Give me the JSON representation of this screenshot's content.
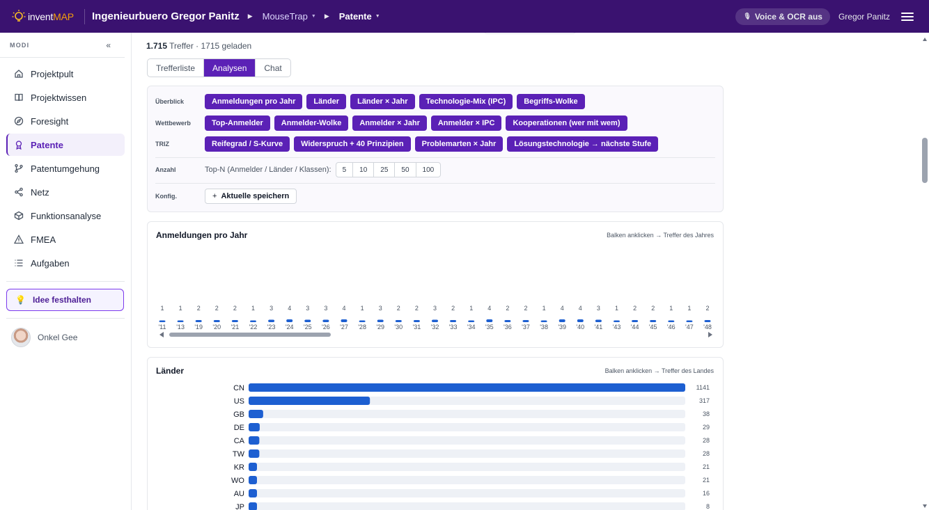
{
  "topbar": {
    "logo_part1": "invent",
    "logo_part2": "MAP",
    "org_name": "Ingenieurbuero Gregor Panitz",
    "crumbs": [
      {
        "label": "MouseTrap"
      },
      {
        "label": "Patente"
      }
    ],
    "voice_label": "Voice & OCR aus",
    "user_name": "Gregor Panitz"
  },
  "sidebar": {
    "section_label": "MODI",
    "collapse_label": "«",
    "items": [
      {
        "label": "Projektpult",
        "icon": "home-icon"
      },
      {
        "label": "Projektwissen",
        "icon": "book-icon"
      },
      {
        "label": "Foresight",
        "icon": "compass-icon"
      },
      {
        "label": "Patente",
        "icon": "award-icon",
        "active": true
      },
      {
        "label": "Patentumgehung",
        "icon": "git-branch-icon"
      },
      {
        "label": "Netz",
        "icon": "share-icon"
      },
      {
        "label": "Funktionsanalyse",
        "icon": "cube-icon"
      },
      {
        "label": "FMEA",
        "icon": "warning-icon"
      },
      {
        "label": "Aufgaben",
        "icon": "list-icon"
      }
    ],
    "idea_button": "Idee festhalten",
    "user": "Onkel Gee"
  },
  "main": {
    "hits_count": "1.715",
    "hits_text": "Treffer · 1715 geladen",
    "tabs": [
      "Trefferliste",
      "Analysen",
      "Chat"
    ],
    "active_tab": "Analysen",
    "panel": {
      "rows": [
        {
          "label": "Überblick",
          "chips": [
            "Anmeldungen pro Jahr",
            "Länder",
            "Länder × Jahr",
            "Technologie-Mix (IPC)",
            "Begriffs-Wolke"
          ]
        },
        {
          "label": "Wettbewerb",
          "chips": [
            "Top-Anmelder",
            "Anmelder-Wolke",
            "Anmelder × Jahr",
            "Anmelder × IPC",
            "Kooperationen (wer mit wem)"
          ]
        },
        {
          "label": "TRIZ",
          "chips": [
            "Reifegrad / S-Kurve",
            "Widerspruch + 40 Prinzipien",
            "Problemarten × Jahr",
            "Lösungstechnologie → nächste Stufe"
          ]
        }
      ],
      "count_label": "Anzahl",
      "topn_label": "Top-N (Anmelder / Länder / Klassen):",
      "topn_options": [
        "5",
        "10",
        "25",
        "50",
        "100"
      ],
      "config_label": "Konfig.",
      "save_label": "Aktuelle speichern"
    }
  },
  "chart_data": [
    {
      "type": "bar",
      "title": "Anmeldungen pro Jahr",
      "hint": "Balken anklicken → Treffer des Jahres",
      "categories": [
        "'11",
        "'13",
        "'19",
        "'20",
        "'21",
        "'22",
        "'23",
        "'24",
        "'25",
        "'26",
        "'27",
        "'28",
        "'29",
        "'30",
        "'31",
        "'32",
        "'33",
        "'34",
        "'35",
        "'36",
        "'37",
        "'38",
        "'39",
        "'40",
        "'41",
        "'43",
        "'44",
        "'45",
        "'46",
        "'47",
        "'48"
      ],
      "values": [
        1,
        1,
        2,
        2,
        2,
        1,
        3,
        4,
        3,
        3,
        4,
        1,
        3,
        2,
        2,
        3,
        2,
        1,
        4,
        2,
        2,
        1,
        4,
        4,
        3,
        1,
        2,
        2,
        1,
        1,
        2
      ],
      "bar_color": "#1d5fd1"
    },
    {
      "type": "bar",
      "orientation": "horizontal",
      "title": "Länder",
      "hint": "Balken anklicken → Treffer des Landes",
      "categories": [
        "CN",
        "US",
        "GB",
        "DE",
        "CA",
        "TW",
        "KR",
        "WO",
        "AU",
        "JP"
      ],
      "values": [
        1141,
        317,
        38,
        29,
        28,
        28,
        21,
        21,
        16,
        8
      ],
      "xlim": [
        0,
        1141
      ],
      "bar_color": "#1d5fd1",
      "track_color": "#eef1f6"
    }
  ]
}
